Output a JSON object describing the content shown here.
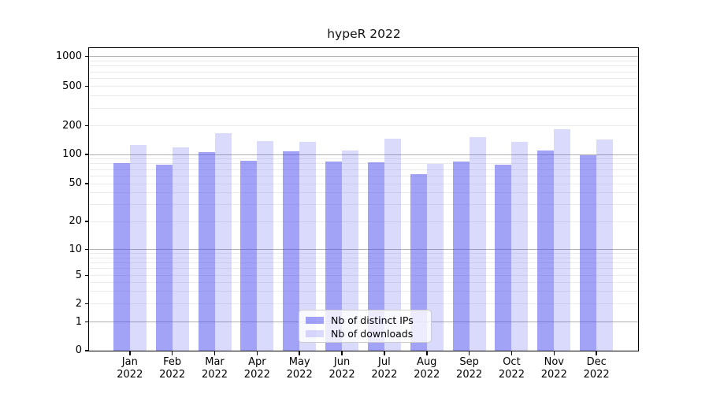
{
  "title": "hypeR 2022",
  "chart_data": {
    "type": "bar",
    "title": "hypeR 2022",
    "categories": [
      "Jan 2022",
      "Feb 2022",
      "Mar 2022",
      "Apr 2022",
      "May 2022",
      "Jun 2022",
      "Jul 2022",
      "Aug 2022",
      "Sep 2022",
      "Oct 2022",
      "Nov 2022",
      "Dec 2022"
    ],
    "series": [
      {
        "name": "Nb of distinct IPs",
        "color": "rgba(70,70,240,0.5)",
        "values": [
          81,
          78,
          105,
          86,
          107,
          84,
          83,
          63,
          84,
          79,
          111,
          99
        ]
      },
      {
        "name": "Nb of downloads",
        "color": "rgba(70,70,240,0.2)",
        "values": [
          126,
          118,
          167,
          137,
          136,
          111,
          146,
          80,
          151,
          136,
          183,
          144
        ]
      }
    ],
    "yticks": [
      0,
      1,
      2,
      5,
      10,
      20,
      50,
      100,
      200,
      500,
      1000
    ],
    "ylim": [
      0,
      1000
    ],
    "yscale": "symlog",
    "xlabel": "",
    "ylabel": "",
    "grid": true,
    "legend_position": "lower center",
    "colors": {
      "grid_major": "#b0b0b0",
      "grid_minor": "#ebebeb",
      "spine": "#000000"
    }
  }
}
